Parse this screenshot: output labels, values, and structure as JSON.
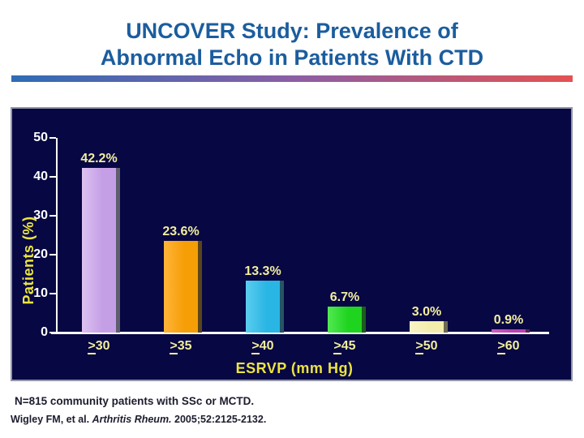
{
  "slide": {
    "title": "UNCOVER Study: Prevalence of\nAbnormal Echo in Patients With CTD",
    "footnote": "N=815 community patients with SSc or MCTD.",
    "citation_prefix": "Wigley FM, et al. ",
    "citation_journal": "Arthritis Rheum.",
    "citation_suffix": " 2005;52:2125-2132."
  },
  "colors": {
    "title_blue": "#1b5d9e",
    "divider_left_blue": "#2e6cb5",
    "divider_right_red": "#e35252",
    "chart_background_navy": "#070744",
    "axis_white": "#ffffff",
    "value_label_yellow": "#f2ee9d",
    "axis_title_yellow": "#ece43e",
    "footnote_dark": "#1c1c2e"
  },
  "chart_data": {
    "type": "bar",
    "categories": [
      ">30",
      ">35",
      ">40",
      ">45",
      ">50",
      ">60"
    ],
    "categories_note": "leading > is underlined on screen, meaning greater-than-or-equal",
    "values": [
      42.2,
      23.6,
      13.3,
      6.7,
      3.0,
      0.9
    ],
    "value_labels": [
      "42.2%",
      "23.6%",
      "13.3%",
      "6.7%",
      "3.0%",
      "0.9%"
    ],
    "bar_colors": [
      "#c59fe6",
      "#f59e06",
      "#2ab6e4",
      "#1fd41f",
      "#f3eeac",
      "#bb42ae"
    ],
    "bar_colors_light": [
      "#dcc2f1",
      "#ffb43a",
      "#5bcdef",
      "#52e852",
      "#f8f4c6",
      "#cf5ec2"
    ],
    "bar_shadow_colors": [
      "#5e5e6e",
      "#5a451a",
      "#265463",
      "#1d5a1d",
      "#6c6a55",
      "#54264e"
    ],
    "title": "UNCOVER Study: Prevalence of Abnormal Echo in Patients With CTD",
    "xlabel": "ESRVP (mm Hg)",
    "ylabel": "Patients (%)",
    "ylim": [
      0,
      50
    ],
    "yticks": [
      0,
      10,
      20,
      30,
      40,
      50
    ],
    "grid": false,
    "legend": false
  }
}
